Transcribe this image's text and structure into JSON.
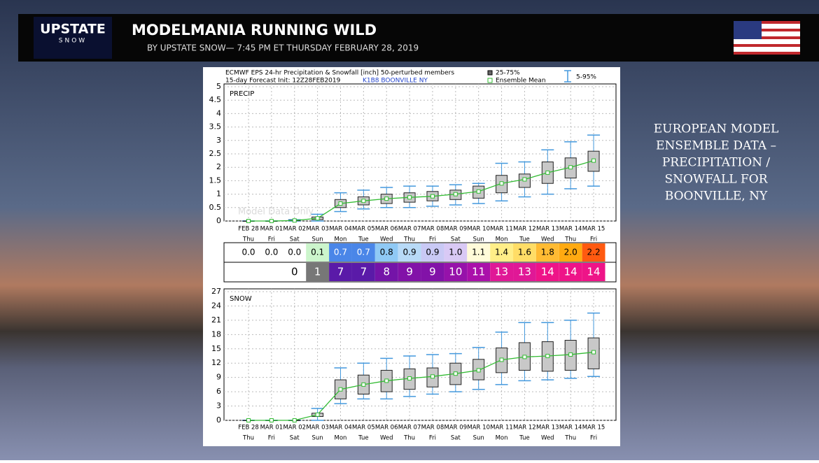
{
  "header": {
    "logo": "UPSTATE",
    "logo_sub": "SNOW",
    "title": "MODELMANIA RUNNING WILD",
    "subtitle": "BY UPSTATE SNOW— 7:45 PM ET THURSDAY FEBRUARY 28, 2019"
  },
  "side_text": [
    "EUROPEAN MODEL",
    "ENSEMBLE DATA –",
    "PRECIPITATION /",
    "SNOWFALL FOR",
    "BOONVILLE, NY"
  ],
  "panel": {
    "line1": "ECMWF EPS 24-hr Precipitation & Snowfall [inch]  50-perturbed members",
    "line2": "15-day Forecast Init: 12Z28FEB2019",
    "station": "K1B8  BOONVILLE     NY",
    "watermark": "Model Data Only"
  },
  "chart_data": [
    {
      "type": "box",
      "label": "PRECIP",
      "categories": [
        "FEB 28",
        "MAR 01",
        "MAR 02",
        "MAR 03",
        "MAR 04",
        "MAR 05",
        "MAR 06",
        "MAR 07",
        "MAR 08",
        "MAR 09",
        "MAR 10",
        "MAR 11",
        "MAR 12",
        "MAR 13",
        "MAR 14",
        "MAR 15"
      ],
      "weekdays": [
        "Thu",
        "Fri",
        "Sat",
        "Sun",
        "Mon",
        "Tue",
        "Wed",
        "Thu",
        "Fri",
        "Sat",
        "Sun",
        "Mon",
        "Tue",
        "Wed",
        "Thu",
        "Fri"
      ],
      "box": {
        "name": "25-75%",
        "color": "#c8c8c8",
        "low": [
          0,
          0,
          0.01,
          0.05,
          0.5,
          0.6,
          0.65,
          0.7,
          0.75,
          0.8,
          0.85,
          1.05,
          1.25,
          1.4,
          1.6,
          1.85
        ],
        "high": [
          0,
          0,
          0.03,
          0.15,
          0.8,
          0.9,
          1.0,
          1.05,
          1.1,
          1.15,
          1.3,
          1.7,
          1.75,
          2.2,
          2.35,
          2.6
        ]
      },
      "whisker": {
        "name": "5-95%",
        "color": "#4499dd",
        "low": [
          0,
          0,
          0,
          0,
          0.35,
          0.45,
          0.5,
          0.5,
          0.55,
          0.6,
          0.65,
          0.75,
          0.9,
          1.0,
          1.2,
          1.3
        ],
        "high": [
          0,
          0,
          0.05,
          0.25,
          1.05,
          1.15,
          1.25,
          1.3,
          1.3,
          1.35,
          1.4,
          2.15,
          2.2,
          2.65,
          2.95,
          3.2
        ]
      },
      "mean": {
        "name": "Ensemble Mean",
        "color": "#33bb33",
        "values": [
          0,
          0,
          0.02,
          0.1,
          0.65,
          0.75,
          0.83,
          0.88,
          0.92,
          1.0,
          1.1,
          1.4,
          1.55,
          1.8,
          2.0,
          2.25
        ]
      },
      "ylim": [
        0,
        5
      ],
      "yticks": [
        0,
        0.5,
        1,
        1.5,
        2,
        2.5,
        3,
        3.5,
        4,
        4.5,
        5
      ],
      "grid": true
    },
    {
      "type": "box",
      "label": "SNOW",
      "categories": [
        "FEB 28",
        "MAR 01",
        "MAR 02",
        "MAR 03",
        "MAR 04",
        "MAR 05",
        "MAR 06",
        "MAR 07",
        "MAR 08",
        "MAR 09",
        "MAR 10",
        "MAR 11",
        "MAR 12",
        "MAR 13",
        "MAR 14",
        "MAR 15"
      ],
      "weekdays": [
        "Thu",
        "Fri",
        "Sat",
        "Sun",
        "Mon",
        "Tue",
        "Wed",
        "Thu",
        "Fri",
        "Sat",
        "Sun",
        "Mon",
        "Tue",
        "Wed",
        "Thu",
        "Fri"
      ],
      "box": {
        "color": "#c8c8c8",
        "low": [
          0,
          0,
          0,
          0.8,
          4.5,
          5.5,
          6,
          6.5,
          7,
          7.5,
          8.5,
          10,
          10.5,
          10.3,
          10.5,
          10.8
        ],
        "high": [
          0,
          0,
          0,
          1.5,
          8.5,
          9.5,
          10.5,
          10.8,
          11,
          12,
          12.8,
          15.2,
          16.3,
          16.5,
          16.8,
          17.3
        ]
      },
      "whisker": {
        "color": "#4499dd",
        "low": [
          0,
          0,
          0,
          0,
          3.5,
          4.5,
          4.5,
          5,
          5.5,
          6,
          6.5,
          7.5,
          8.3,
          8.5,
          8.8,
          9.2
        ],
        "high": [
          0,
          0,
          0,
          2.5,
          11,
          12,
          13,
          13.5,
          13.8,
          14,
          15.3,
          18.5,
          20.5,
          20.5,
          21,
          22.5
        ]
      },
      "mean": {
        "color": "#33bb33",
        "values": [
          0,
          0,
          0,
          1.2,
          6.5,
          7.5,
          8.3,
          8.8,
          9.2,
          9.8,
          10.5,
          12.7,
          13.3,
          13.5,
          13.8,
          14.3
        ]
      },
      "ylim": [
        0,
        27
      ],
      "yticks": [
        0,
        3,
        6,
        9,
        12,
        15,
        18,
        21,
        24,
        27
      ],
      "grid": true
    }
  ],
  "table": {
    "precip": {
      "labels": [
        "0.0",
        "0.0",
        "0.0",
        "0.1",
        "0.7",
        "0.7",
        "0.8",
        "0.9",
        "0.9",
        "1.0",
        "1.1",
        "1.4",
        "1.6",
        "1.8",
        "2.0",
        "2.2"
      ],
      "colors": [
        "#ffffff",
        "#ffffff",
        "#ffffff",
        "#ccf5cc",
        "#4a86e8",
        "#4a86e8",
        "#8fc9f5",
        "#b8daf7",
        "#c9c9f5",
        "#d9c9f5",
        "#fffbd9",
        "#ffee88",
        "#ffdd66",
        "#ffbb33",
        "#ffaa11",
        "#ff5a10"
      ]
    },
    "snow": {
      "labels": [
        null,
        null,
        "0",
        "1",
        "7",
        "7",
        "8",
        "9",
        "9",
        "10",
        "11",
        "13",
        "13",
        "14",
        "14",
        "14"
      ],
      "colors": [
        "#ffffff",
        "#ffffff",
        "#ffffff",
        "#777777",
        "#5a1aa8",
        "#5a1aa8",
        "#7414a8",
        "#8212a8",
        "#8212a8",
        "#9612aa",
        "#aa10aa",
        "#e01896",
        "#e01896",
        "#ee1488",
        "#ee1488",
        "#ee1488"
      ]
    }
  }
}
